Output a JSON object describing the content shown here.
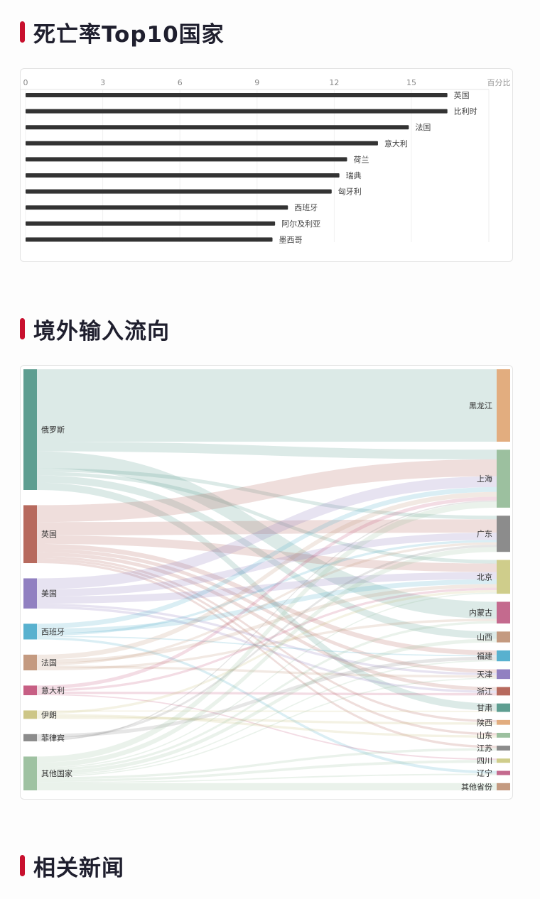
{
  "sections": {
    "death_rate_title": "死亡率Top10国家",
    "inflow_title": "境外输入流向",
    "news_title": "相关新闻"
  },
  "colors": {
    "accent": "#c8102e",
    "bar": "#333333"
  },
  "chart_data": [
    {
      "type": "bar",
      "orientation": "horizontal",
      "title": "死亡率Top10国家",
      "unit_label": "百分比",
      "xlim": [
        0,
        18
      ],
      "xticks": [
        0,
        3,
        6,
        9,
        12,
        15
      ],
      "grid": true,
      "categories": [
        "英国",
        "比利时",
        "法国",
        "意大利",
        "荷兰",
        "瑞典",
        "匈牙利",
        "西班牙",
        "阿尔及利亚",
        "墨西哥"
      ],
      "values": [
        16.4,
        16.4,
        14.9,
        13.7,
        12.5,
        12.2,
        11.9,
        10.2,
        9.7,
        9.6
      ]
    },
    {
      "type": "sankey",
      "title": "境外输入流向",
      "sources": [
        {
          "name": "俄罗斯",
          "value": 100,
          "color": "#5e9e91"
        },
        {
          "name": "英国",
          "value": 48,
          "color": "#b76a5e"
        },
        {
          "name": "美国",
          "value": 25,
          "color": "#9180c1"
        },
        {
          "name": "西班牙",
          "value": 13,
          "color": "#58b1cf"
        },
        {
          "name": "法国",
          "value": 13,
          "color": "#c49a80"
        },
        {
          "name": "意大利",
          "value": 8,
          "color": "#c75f84"
        },
        {
          "name": "伊朗",
          "value": 7,
          "color": "#cdc686"
        },
        {
          "name": "菲律宾",
          "value": 6,
          "color": "#8c8c8c"
        },
        {
          "name": "其他国家",
          "value": 28,
          "color": "#9fc2a2"
        }
      ],
      "targets": [
        {
          "name": "黑龙江",
          "value": 60,
          "color": "#e2ad7f"
        },
        {
          "name": "上海",
          "value": 48,
          "color": "#9cc09f"
        },
        {
          "name": "广东",
          "value": 30,
          "color": "#8c8c8c"
        },
        {
          "name": "北京",
          "value": 28,
          "color": "#cfcd8b"
        },
        {
          "name": "内蒙古",
          "value": 18,
          "color": "#c46a8e"
        },
        {
          "name": "山西",
          "value": 9,
          "color": "#c49a80"
        },
        {
          "name": "福建",
          "value": 9,
          "color": "#58b1cf"
        },
        {
          "name": "天津",
          "value": 8,
          "color": "#9180c1"
        },
        {
          "name": "浙江",
          "value": 7,
          "color": "#b76a5e"
        },
        {
          "name": "甘肃",
          "value": 7,
          "color": "#5e9e91"
        },
        {
          "name": "陕西",
          "value": 4,
          "color": "#e2ad7f"
        },
        {
          "name": "山东",
          "value": 4,
          "color": "#9cc09f"
        },
        {
          "name": "江苏",
          "value": 4,
          "color": "#8c8c8c"
        },
        {
          "name": "四川",
          "value": 3,
          "color": "#cfcd8b"
        },
        {
          "name": "辽宁",
          "value": 3,
          "color": "#c46a8e"
        },
        {
          "name": "其他省份",
          "value": 6,
          "color": "#c49a80"
        }
      ],
      "links": [
        {
          "source": "俄罗斯",
          "target": "黑龙江",
          "value": 60
        },
        {
          "source": "俄罗斯",
          "target": "上海",
          "value": 8
        },
        {
          "source": "俄罗斯",
          "target": "内蒙古",
          "value": 14
        },
        {
          "source": "俄罗斯",
          "target": "广东",
          "value": 3
        },
        {
          "source": "俄罗斯",
          "target": "北京",
          "value": 3
        },
        {
          "source": "俄罗斯",
          "target": "山西",
          "value": 6
        },
        {
          "source": "俄罗斯",
          "target": "甘肃",
          "value": 6
        },
        {
          "source": "英国",
          "target": "上海",
          "value": 14
        },
        {
          "source": "英国",
          "target": "广东",
          "value": 11
        },
        {
          "source": "英国",
          "target": "北京",
          "value": 7
        },
        {
          "source": "英国",
          "target": "福建",
          "value": 4
        },
        {
          "source": "英国",
          "target": "天津",
          "value": 3
        },
        {
          "source": "英国",
          "target": "浙江",
          "value": 3
        },
        {
          "source": "英国",
          "target": "陕西",
          "value": 2
        },
        {
          "source": "英国",
          "target": "山东",
          "value": 2
        },
        {
          "source": "英国",
          "target": "江苏",
          "value": 2
        },
        {
          "source": "美国",
          "target": "上海",
          "value": 9
        },
        {
          "source": "美国",
          "target": "广东",
          "value": 6
        },
        {
          "source": "美国",
          "target": "北京",
          "value": 6
        },
        {
          "source": "美国",
          "target": "天津",
          "value": 2
        },
        {
          "source": "美国",
          "target": "浙江",
          "value": 2
        },
        {
          "source": "西班牙",
          "target": "上海",
          "value": 4
        },
        {
          "source": "西班牙",
          "target": "北京",
          "value": 4
        },
        {
          "source": "西班牙",
          "target": "广东",
          "value": 2
        },
        {
          "source": "西班牙",
          "target": "福建",
          "value": 1
        },
        {
          "source": "西班牙",
          "target": "辽宁",
          "value": 2
        },
        {
          "source": "法国",
          "target": "上海",
          "value": 4
        },
        {
          "source": "法国",
          "target": "北京",
          "value": 3
        },
        {
          "source": "法国",
          "target": "广东",
          "value": 2
        },
        {
          "source": "法国",
          "target": "天津",
          "value": 2
        },
        {
          "source": "法国",
          "target": "内蒙古",
          "value": 2
        },
        {
          "source": "意大利",
          "target": "上海",
          "value": 3
        },
        {
          "source": "意大利",
          "target": "北京",
          "value": 2
        },
        {
          "source": "意大利",
          "target": "浙江",
          "value": 2
        },
        {
          "source": "意大利",
          "target": "四川",
          "value": 1
        },
        {
          "source": "伊朗",
          "target": "甘肃",
          "value": 1
        },
        {
          "source": "伊朗",
          "target": "北京",
          "value": 2
        },
        {
          "source": "伊朗",
          "target": "山东",
          "value": 2
        },
        {
          "source": "伊朗",
          "target": "陕西",
          "value": 2
        },
        {
          "source": "菲律宾",
          "target": "福建",
          "value": 3
        },
        {
          "source": "菲律宾",
          "target": "广东",
          "value": 2
        },
        {
          "source": "菲律宾",
          "target": "上海",
          "value": 1
        },
        {
          "source": "其他国家",
          "target": "上海",
          "value": 5
        },
        {
          "source": "其他国家",
          "target": "广东",
          "value": 4
        },
        {
          "source": "其他国家",
          "target": "北京",
          "value": 1
        },
        {
          "source": "其他国家",
          "target": "内蒙古",
          "value": 2
        },
        {
          "source": "其他国家",
          "target": "山西",
          "value": 3
        },
        {
          "source": "其他国家",
          "target": "福建",
          "value": 1
        },
        {
          "source": "其他国家",
          "target": "天津",
          "value": 1
        },
        {
          "source": "其他国家",
          "target": "江苏",
          "value": 2
        },
        {
          "source": "其他国家",
          "target": "四川",
          "value": 2
        },
        {
          "source": "其他国家",
          "target": "辽宁",
          "value": 1
        },
        {
          "source": "其他国家",
          "target": "其他省份",
          "value": 6
        }
      ]
    }
  ]
}
